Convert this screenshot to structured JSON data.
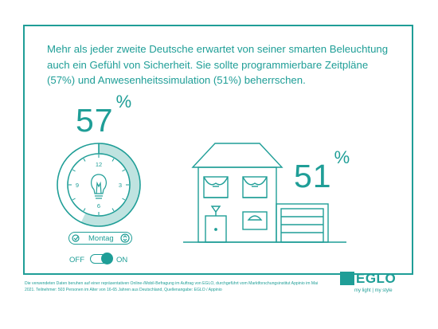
{
  "headline": "Mehr als jeder zweite Deutsche erwartet von seiner smarten Beleuchtung auch ein Gefühl von Sicherheit. Sie sollte programmierbare Zeitpläne (57%) und Anwesenheitssimulation (51%) beherrschen.",
  "stat_schedule": {
    "value": "57",
    "unit": "%"
  },
  "stat_presence": {
    "value": "51",
    "unit": "%"
  },
  "clock": {
    "n12": "12",
    "n3": "3",
    "n6": "6",
    "n9": "9",
    "arc_fraction": 0.57
  },
  "day_selector": {
    "value": "Montag"
  },
  "toggle": {
    "off_label": "OFF",
    "on_label": "ON",
    "state": "on"
  },
  "footnote": "Die verwendeten Daten beruhen auf einer repräsentativen Online-/Mobil-Befragung im Auftrag von EGLO, durchgeführt vom Marktforschungsinstitut Appinio im Mai 2021. Teilnehmer: 503 Personen im Alter von 16-65 Jahren aus Deutschland, Quellenangabe: EGLO / Appinio",
  "brand": {
    "name": "EGLO",
    "tagline": "my light | my style"
  },
  "colors": {
    "accent": "#1f9e97",
    "accent_light": "#bfe3e0",
    "background": "#ffffff"
  }
}
